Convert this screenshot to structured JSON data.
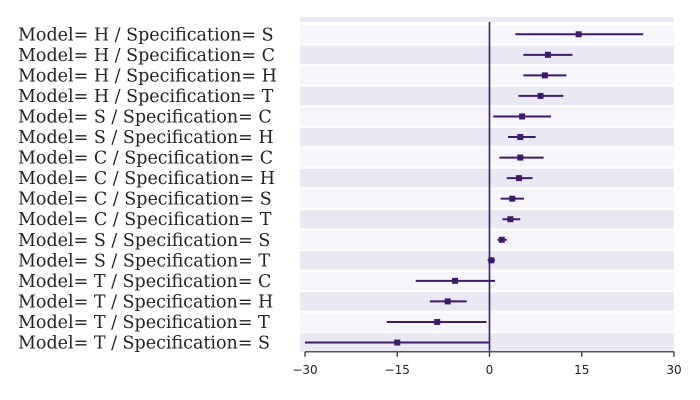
{
  "chart_data": {
    "type": "forest",
    "title": "",
    "xlabel": "",
    "ylabel": "",
    "xlim": [
      -30,
      30
    ],
    "xticks": [
      -30,
      -15,
      0,
      15,
      30
    ],
    "xtick_labels": [
      "−30",
      "−15",
      "0",
      "15",
      "30"
    ],
    "reference_line": 0,
    "colors": {
      "mark": "#3f1a6b",
      "band_even": "#e9e8f3",
      "band_odd": "#f6f6fa",
      "axis": "#222222"
    },
    "rows": [
      {
        "label": "Model= H / Specification= S",
        "estimate": 14.5,
        "low": 4.2,
        "high": 25.0
      },
      {
        "label": "Model= H / Specification= C",
        "estimate": 9.5,
        "low": 5.5,
        "high": 13.5
      },
      {
        "label": "Model= H / Specification= H",
        "estimate": 9.0,
        "low": 5.5,
        "high": 12.5
      },
      {
        "label": "Model= H / Specification= T",
        "estimate": 8.3,
        "low": 4.7,
        "high": 12.0
      },
      {
        "label": "Model= S / Specification= C",
        "estimate": 5.3,
        "low": 0.6,
        "high": 10.0
      },
      {
        "label": "Model= S / Specification= H",
        "estimate": 5.0,
        "low": 3.0,
        "high": 7.5
      },
      {
        "label": "Model= C / Specification= C",
        "estimate": 5.0,
        "low": 1.6,
        "high": 8.8
      },
      {
        "label": "Model= C / Specification= H",
        "estimate": 4.8,
        "low": 2.8,
        "high": 7.0
      },
      {
        "label": "Model= C / Specification= S",
        "estimate": 3.7,
        "low": 1.8,
        "high": 5.6
      },
      {
        "label": "Model= C / Specification= T",
        "estimate": 3.4,
        "low": 2.1,
        "high": 5.0
      },
      {
        "label": "Model= S / Specification= S",
        "estimate": 2.0,
        "low": 1.3,
        "high": 2.8
      },
      {
        "label": "Model= S / Specification= T",
        "estimate": 0.3,
        "low": -0.3,
        "high": 0.9
      },
      {
        "label": "Model= T / Specification= C",
        "estimate": -5.6,
        "low": -12.0,
        "high": 0.9
      },
      {
        "label": "Model= T / Specification= H",
        "estimate": -6.8,
        "low": -9.7,
        "high": -3.7
      },
      {
        "label": "Model= T / Specification= T",
        "estimate": -8.5,
        "low": -16.7,
        "high": -0.5
      },
      {
        "label": "Model= T / Specification= S",
        "estimate": -15.0,
        "low": -30.0,
        "high": 0.0
      }
    ]
  }
}
